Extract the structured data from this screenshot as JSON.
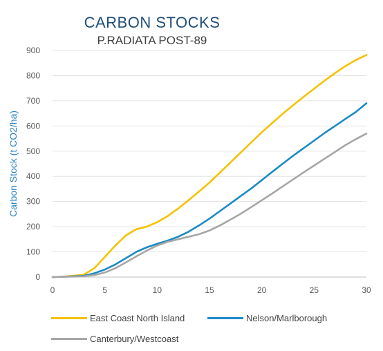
{
  "chart_data": {
    "type": "line",
    "title": "CARBON STOCKS",
    "subtitle": "P.RADIATA POST-89",
    "ylabel": "Carbon Stock (t CO2/ha)",
    "xlabel": "",
    "xlim": [
      0,
      30
    ],
    "ylim": [
      0,
      900
    ],
    "x_ticks": [
      0,
      5,
      10,
      15,
      20,
      25,
      30
    ],
    "y_ticks": [
      0,
      100,
      200,
      300,
      400,
      500,
      600,
      700,
      800,
      900
    ],
    "grid": "horizontal",
    "legend_position": "bottom",
    "series": [
      {
        "name": "East Coast North Island",
        "color": "#f5c200",
        "x": [
          0,
          1,
          2,
          3,
          4,
          5,
          6,
          7,
          8,
          9,
          10,
          11,
          12,
          13,
          14,
          15,
          16,
          17,
          18,
          19,
          20,
          21,
          22,
          23,
          24,
          25,
          26,
          27,
          28,
          29,
          30
        ],
        "values": [
          0,
          2,
          5,
          10,
          35,
          80,
          125,
          165,
          190,
          200,
          218,
          242,
          272,
          305,
          340,
          375,
          415,
          455,
          495,
          535,
          575,
          612,
          648,
          683,
          716,
          748,
          780,
          810,
          838,
          862,
          882
        ]
      },
      {
        "name": "Nelson/Marlborough",
        "color": "#1a8ac6",
        "x": [
          0,
          1,
          2,
          3,
          4,
          5,
          6,
          7,
          8,
          9,
          10,
          11,
          12,
          13,
          14,
          15,
          16,
          17,
          18,
          19,
          20,
          21,
          22,
          23,
          24,
          25,
          26,
          27,
          28,
          29,
          30
        ],
        "values": [
          0,
          1,
          3,
          5,
          15,
          30,
          50,
          75,
          100,
          118,
          132,
          145,
          160,
          180,
          205,
          232,
          262,
          292,
          322,
          352,
          385,
          418,
          450,
          482,
          512,
          542,
          572,
          600,
          628,
          656,
          690
        ]
      },
      {
        "name": "Canterbury/Westcoast",
        "color": "#a6a6a6",
        "x": [
          0,
          1,
          2,
          3,
          4,
          5,
          6,
          7,
          8,
          9,
          10,
          11,
          12,
          13,
          14,
          15,
          16,
          17,
          18,
          19,
          20,
          21,
          22,
          23,
          24,
          25,
          26,
          27,
          28,
          29,
          30
        ],
        "values": [
          0,
          1,
          2,
          3,
          8,
          18,
          35,
          58,
          82,
          105,
          125,
          140,
          150,
          160,
          170,
          185,
          205,
          228,
          252,
          278,
          305,
          332,
          360,
          388,
          416,
          443,
          470,
          497,
          524,
          548,
          570
        ]
      }
    ]
  }
}
